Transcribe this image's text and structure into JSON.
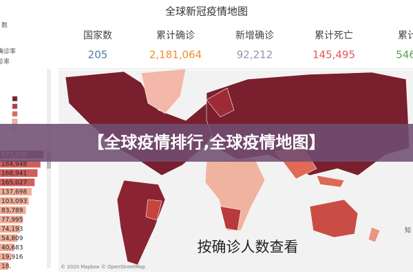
{
  "header": {
    "title": "全球新冠疫情地图"
  },
  "stats": [
    {
      "label": "国家数",
      "value": "205",
      "color": "#4e79a7"
    },
    {
      "label": "累计确诊",
      "value": "2,181,064",
      "color": "#f28e2b"
    },
    {
      "label": "新增确诊",
      "value": "92,212",
      "color": "#9a8fb5"
    },
    {
      "label": "累计死亡",
      "value": "145,495",
      "color": "#e15759"
    },
    {
      "label": "累计",
      "value": "546,",
      "color": "#59a14f"
    }
  ],
  "side_panel": {
    "labels": [
      "数",
      "确诊率",
      "诊率"
    ],
    "list": [
      "677,570",
      "184,948",
      "168,941",
      "165,027",
      "137,698",
      "103,093",
      "83,789",
      "77,995",
      "74,193",
      "54,809",
      "40,683",
      "19,916",
      "18,"
    ]
  },
  "banner": "【全球疫情排行,全球疫情地图】",
  "map": {
    "caption": "按确诊人数查看",
    "attribution": "© 2020 Mapbox © OpenStreetMap",
    "corner_note": "知"
  }
}
